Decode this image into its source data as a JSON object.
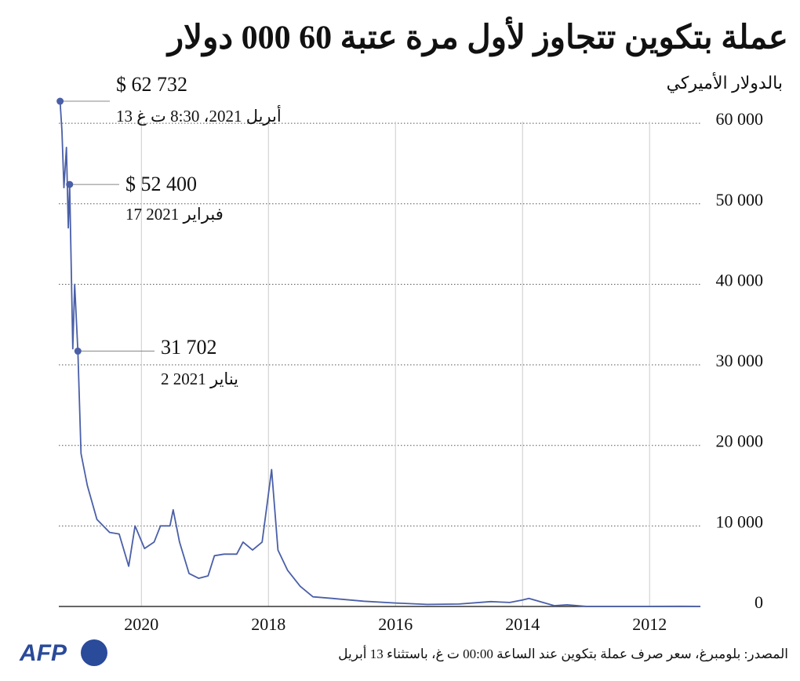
{
  "chart_data": {
    "type": "line",
    "title": "عملة بتكوين تتجاوز لأول مرة عتبة 60 000 دولار",
    "subtitle": "بالدولار الأميركي",
    "source": "المصدر: بلومبرغ، سعر صرف عملة بتكوين عند الساعة 00:00 ت غ، باستثناء 13 أبريل",
    "logo": "AFP",
    "xlim": [
      2021.3,
      2011.2
    ],
    "xticks": [
      2020,
      2018,
      2016,
      2014,
      2012
    ],
    "ylim": [
      0,
      64000
    ],
    "yticks": [
      0,
      {
        "value": 10000,
        "label": "10 000"
      },
      {
        "value": 20000,
        "label": "20 000"
      },
      {
        "value": 30000,
        "label": "30 000"
      },
      {
        "value": 40000,
        "label": "40 000"
      },
      {
        "value": 50000,
        "label": "50 000"
      },
      {
        "value": 60000,
        "label": "60 000"
      }
    ],
    "grid": true,
    "series": [
      {
        "color": "#4a5fa8",
        "x": [
          2011.2,
          2011.5,
          2012.0,
          2012.5,
          2013.0,
          2013.3,
          2013.5,
          2013.9,
          2014.0,
          2014.2,
          2014.5,
          2015.0,
          2015.5,
          2016.0,
          2016.5,
          2017.0,
          2017.3,
          2017.5,
          2017.7,
          2017.85,
          2017.95,
          2018.0,
          2018.1,
          2018.25,
          2018.4,
          2018.5,
          2018.7,
          2018.85,
          2018.95,
          2019.1,
          2019.25,
          2019.4,
          2019.5,
          2019.55,
          2019.7,
          2019.8,
          2019.95,
          2020.1,
          2020.2,
          2020.35,
          2020.5,
          2020.7,
          2020.85,
          2020.95,
          2021.0,
          2021.05,
          2021.08,
          2021.13,
          2021.15,
          2021.18,
          2021.22,
          2021.25,
          2021.28
        ],
        "values": [
          5,
          15,
          6,
          7,
          13,
          200,
          100,
          1000,
          800,
          500,
          600,
          300,
          250,
          430,
          650,
          1000,
          1200,
          2500,
          4500,
          7000,
          17000,
          14000,
          8000,
          7000,
          8000,
          6500,
          6500,
          6300,
          3800,
          3500,
          4100,
          8000,
          12000,
          10000,
          10000,
          8000,
          7200,
          10000,
          5000,
          9000,
          9200,
          10800,
          15000,
          19000,
          31702,
          40000,
          32000,
          52400,
          47000,
          57000,
          52000,
          59000,
          62732
        ]
      }
    ],
    "annotations": [
      {
        "x": 2021.28,
        "value": 62732,
        "label": "$ 62 732",
        "date": "13 أبريل 2021، 8:30 ت غ"
      },
      {
        "x": 2021.13,
        "value": 52400,
        "label": "$ 52 400",
        "date": "17 فبراير 2021"
      },
      {
        "x": 2021.0,
        "value": 31702,
        "label": "31 702",
        "date": "2 يناير 2021"
      }
    ]
  }
}
